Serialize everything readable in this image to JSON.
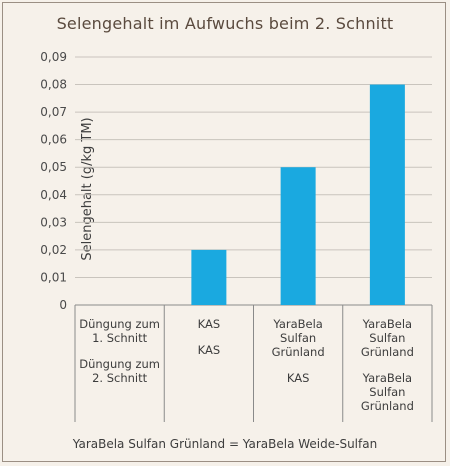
{
  "chart_data": {
    "type": "bar",
    "title": "Selengehalt im Aufwuchs beim 2. Schnitt",
    "ylabel": "Selengehalt (g/kg TM)",
    "xlabel": "",
    "ylim": [
      0,
      0.09
    ],
    "yticks": [
      "0",
      "0,01",
      "0,02",
      "0,03",
      "0,04",
      "0,05",
      "0,06",
      "0,07",
      "0,08",
      "0,09"
    ],
    "grid": true,
    "bar_color": "#1aa9e0",
    "categories": [
      {
        "row1": "Düngung zum 1. Schnitt",
        "row2": "Düngung zum 2. Schnitt"
      },
      {
        "row1": "KAS",
        "row2": "KAS"
      },
      {
        "row1": "YaraBela Sulfan Grünland",
        "row2": "KAS"
      },
      {
        "row1": "YaraBela Sulfan Grünland",
        "row2": "YaraBela Sulfan Grünland"
      }
    ],
    "values": [
      null,
      0.02,
      0.05,
      0.08
    ]
  },
  "footnote": "YaraBela Sulfan Grünland = YaraBela Weide-Sulfan"
}
